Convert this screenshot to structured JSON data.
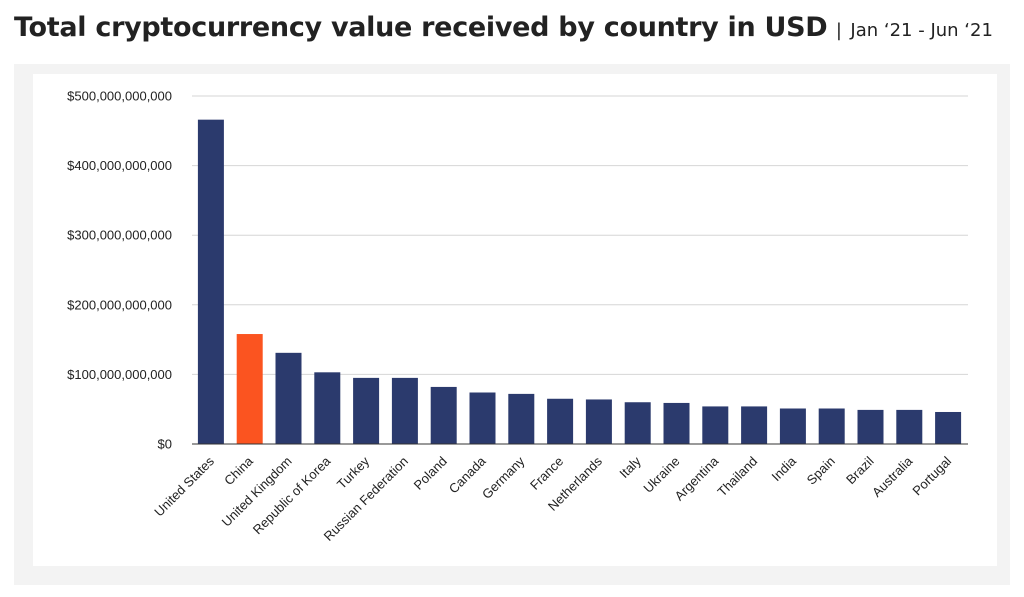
{
  "header": {
    "title": "Total cryptocurrency value received by country in USD",
    "separator": "|",
    "subtitle": "Jan ‘21 - Jun ‘21"
  },
  "colors": {
    "default_bar": "#2b3a6d",
    "highlight_bar": "#fb5420",
    "gridline": "#d6d6d6",
    "axis": "#333333"
  },
  "chart_data": {
    "type": "bar",
    "title": "Total cryptocurrency value received by country in USD",
    "subtitle": "Jan ‘21 - Jun ‘21",
    "xlabel": "",
    "ylabel": "",
    "ylim": [
      0,
      500000000000
    ],
    "yticks": [
      0,
      100000000000,
      200000000000,
      300000000000,
      400000000000,
      500000000000
    ],
    "ytick_labels": [
      "$0",
      "$100,000,000,000",
      "$200,000,000,000",
      "$300,000,000,000",
      "$400,000,000,000",
      "$500,000,000,000"
    ],
    "grid": true,
    "legend": "none",
    "highlight_category": "China",
    "categories": [
      "United States",
      "China",
      "United Kingdom",
      "Republic of Korea",
      "Turkey",
      "Russian Federation",
      "Poland",
      "Canada",
      "Germany",
      "France",
      "Netherlands",
      "Italy",
      "Ukraine",
      "Argentina",
      "Thailand",
      "India",
      "Spain",
      "Brazil",
      "Australia",
      "Portugal"
    ],
    "values": [
      466000000000,
      158000000000,
      131000000000,
      103000000000,
      95000000000,
      95000000000,
      82000000000,
      74000000000,
      72000000000,
      65000000000,
      64000000000,
      60000000000,
      59000000000,
      54000000000,
      54000000000,
      51000000000,
      51000000000,
      49000000000,
      49000000000,
      46000000000
    ]
  }
}
